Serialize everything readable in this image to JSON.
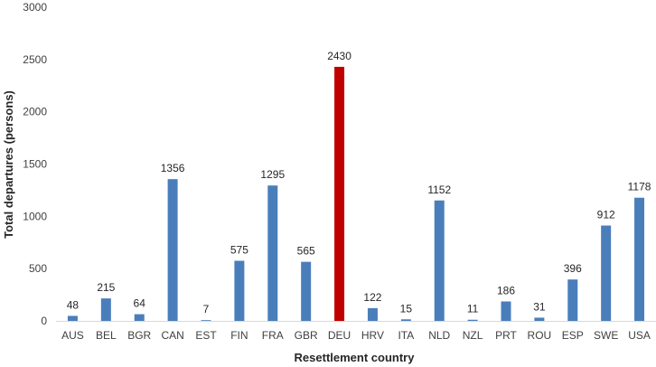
{
  "chart_data": {
    "type": "bar",
    "title": "",
    "xlabel": "Resettlement country",
    "ylabel": "Total departures (persons)",
    "ylim": [
      0,
      3000
    ],
    "yticks": [
      0,
      500,
      1000,
      1500,
      2000,
      2500,
      3000
    ],
    "grid": false,
    "legend": "none",
    "categories": [
      "AUS",
      "BEL",
      "BGR",
      "CAN",
      "EST",
      "FIN",
      "FRA",
      "GBR",
      "DEU",
      "HRV",
      "ITA",
      "NLD",
      "NZL",
      "PRT",
      "ROU",
      "ESP",
      "SWE",
      "USA"
    ],
    "values": [
      48,
      215,
      64,
      1356,
      7,
      575,
      1295,
      565,
      2430,
      122,
      15,
      1152,
      11,
      186,
      31,
      396,
      912,
      1178
    ],
    "data_labels": [
      "48",
      "215",
      "64",
      "1356",
      "7",
      "575",
      "1295",
      "565",
      "2430",
      "122",
      "15",
      "1152",
      "11",
      "186",
      "31",
      "396",
      "912",
      "1178"
    ],
    "colors": {
      "default": "#4a7ebb",
      "highlight": "#c00000",
      "highlight_category": "DEU"
    }
  }
}
